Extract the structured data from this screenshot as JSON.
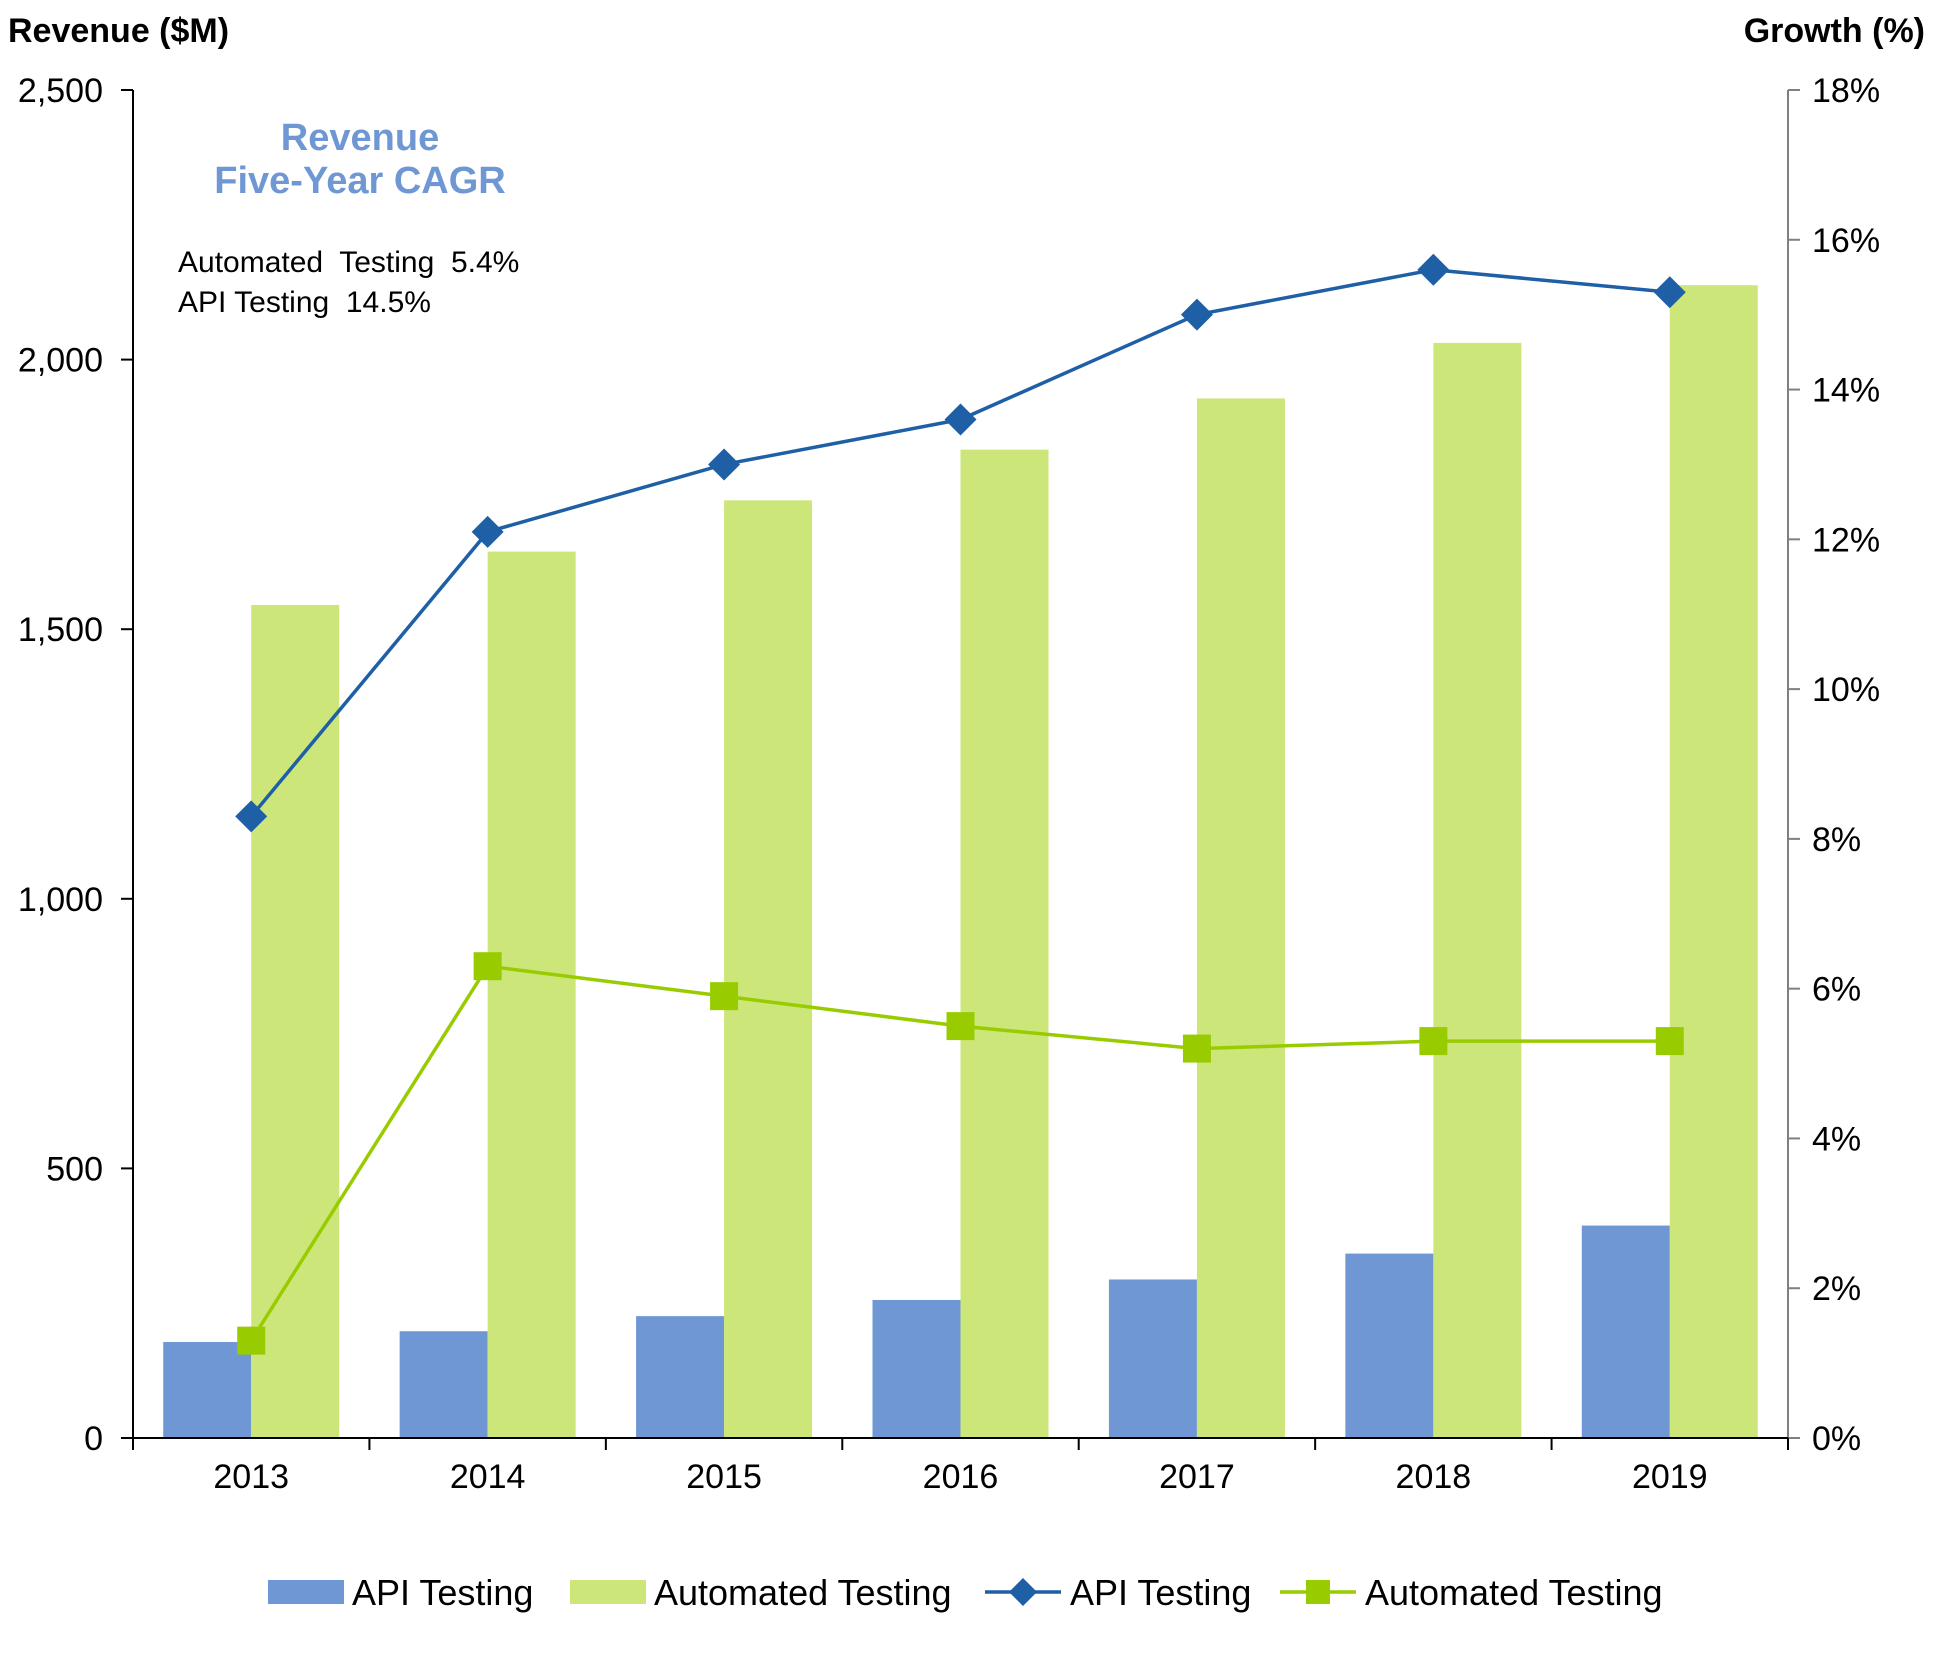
{
  "chart_data": {
    "type": "bar",
    "categories": [
      "2013",
      "2014",
      "2015",
      "2016",
      "2017",
      "2018",
      "2019"
    ],
    "bar_series": [
      {
        "name": "API Testing",
        "axis": "left",
        "color": "#6F97D4",
        "values": [
          178,
          198,
          226,
          256,
          294,
          342,
          394
        ]
      },
      {
        "name": "Automated Testing",
        "axis": "left",
        "color": "#CCE67A",
        "values": [
          1545,
          1644,
          1739,
          1833,
          1928,
          2031,
          2138
        ]
      }
    ],
    "line_series": [
      {
        "name": "API Testing",
        "axis": "right",
        "color": "#1F5FA6",
        "marker": "diamond",
        "values": [
          8.3,
          12.1,
          13.0,
          13.6,
          15.0,
          15.6,
          15.3
        ]
      },
      {
        "name": "Automated Testing",
        "axis": "right",
        "color": "#99CC00",
        "marker": "square",
        "values": [
          1.3,
          6.3,
          5.9,
          5.5,
          5.2,
          5.3,
          5.3
        ]
      }
    ],
    "left_axis": {
      "label": "Revenue ($M)",
      "ylim": [
        0,
        2500
      ],
      "ticks": [
        0,
        500,
        1000,
        1500,
        2000,
        2500
      ],
      "tick_labels": [
        "0",
        "500",
        "1,000",
        "1,500",
        "2,000",
        "2,500"
      ]
    },
    "right_axis": {
      "label": "Growth (%)",
      "ylim": [
        0,
        18
      ],
      "ticks": [
        0,
        2,
        4,
        6,
        8,
        10,
        12,
        14,
        16,
        18
      ],
      "tick_labels": [
        "0%",
        "2%",
        "4%",
        "6%",
        "8%",
        "10%",
        "12%",
        "14%",
        "16%",
        "18%"
      ]
    },
    "annotation": {
      "title_lines": [
        "Revenue",
        "Five-Year CAGR"
      ],
      "title_color": "#6F97D4",
      "lines": [
        "Automated  Testing  5.4%",
        "API Testing  14.5%"
      ]
    },
    "legend": {
      "position": "bottom",
      "items": [
        {
          "label": "API Testing",
          "kind": "bar",
          "color": "#6F97D4"
        },
        {
          "label": "Automated Testing",
          "kind": "bar",
          "color": "#CCE67A"
        },
        {
          "label": "API Testing",
          "kind": "line",
          "marker": "diamond",
          "color": "#1F5FA6"
        },
        {
          "label": "Automated Testing",
          "kind": "line",
          "marker": "square",
          "color": "#99CC00"
        }
      ]
    },
    "grid": false
  }
}
